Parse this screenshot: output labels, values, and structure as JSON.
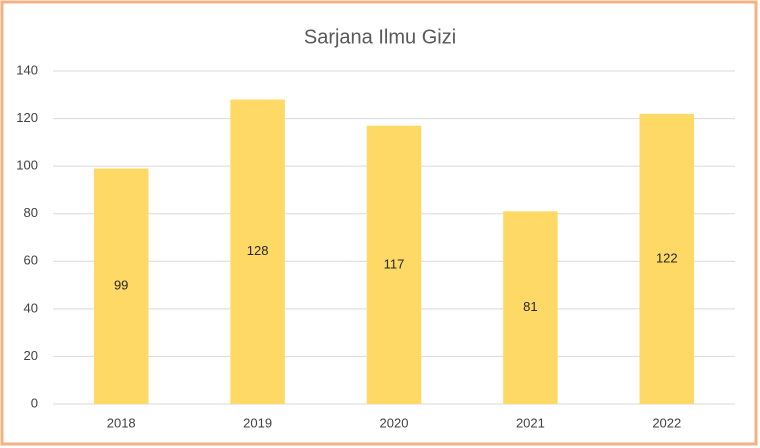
{
  "chart_data": {
    "type": "bar",
    "title": "Sarjana Ilmu Gizi",
    "categories": [
      "2018",
      "2019",
      "2020",
      "2021",
      "2022"
    ],
    "values": [
      99,
      128,
      117,
      81,
      122
    ],
    "color": "#ffd966",
    "ylim": [
      0,
      140
    ],
    "yticks": [
      0,
      20,
      40,
      60,
      80,
      100,
      120,
      140
    ],
    "grid": true
  }
}
